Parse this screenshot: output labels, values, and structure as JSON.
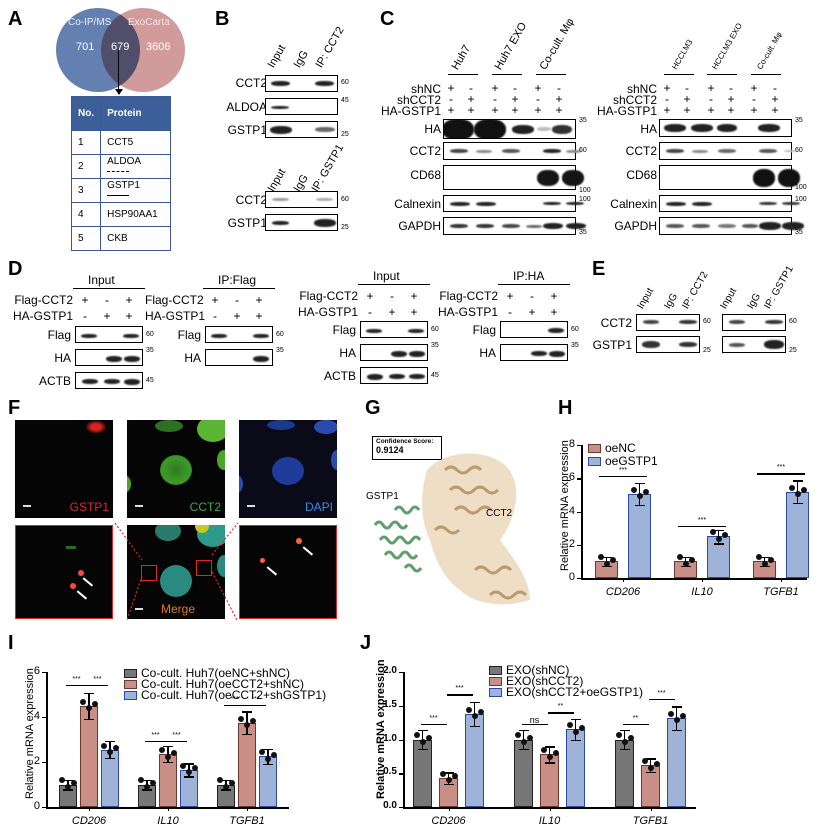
{
  "panels": {
    "A": {
      "label": "A",
      "venn": {
        "left_name": "Co-IP/MS",
        "right_name": "ExoCarta",
        "left_only": "701",
        "overlap": "679",
        "right_only": "3606",
        "left_color": "#5b79ad",
        "right_color": "#c98a8a"
      },
      "table": {
        "headers": [
          "No.",
          "Protein"
        ],
        "rows": [
          {
            "no": "1",
            "protein": "CCT5",
            "arrow": ""
          },
          {
            "no": "2",
            "protein": "ALDOA",
            "arrow": "dashed"
          },
          {
            "no": "3",
            "protein": "GSTP1",
            "arrow": "solid"
          },
          {
            "no": "4",
            "protein": "HSP90AA1",
            "arrow": ""
          },
          {
            "no": "5",
            "protein": "CKB",
            "arrow": ""
          }
        ]
      }
    },
    "B": {
      "label": "B",
      "top": {
        "lanes": [
          "Input",
          "IgG",
          "IP: CCT2"
        ],
        "rows": [
          {
            "name": "CCT2",
            "mw": "60"
          },
          {
            "name": "ALDOA",
            "mw": "45"
          },
          {
            "name": "GSTP1",
            "mw": "25"
          }
        ]
      },
      "bottom": {
        "lanes": [
          "Input",
          "IgG",
          "IP: GSTP1"
        ],
        "rows": [
          {
            "name": "CCT2",
            "mw": "60"
          },
          {
            "name": "GSTP1",
            "mw": "25"
          }
        ]
      }
    },
    "C": {
      "label": "C",
      "left": {
        "groups": [
          "Huh7",
          "Huh7 EXO",
          "Co-cult. Mφ"
        ]
      },
      "right": {
        "groups": [
          "HCCLM3",
          "HCCLM3 EXO",
          "Co-cult. Mφ"
        ]
      },
      "conditions": [
        {
          "name": "shNC",
          "values": [
            "+",
            "-",
            "+",
            "-",
            "+",
            "-"
          ]
        },
        {
          "name": "shCCT2",
          "values": [
            "-",
            "+",
            "-",
            "+",
            "-",
            "+"
          ]
        },
        {
          "name": "HA-GSTP1",
          "values": [
            "+",
            "+",
            "+",
            "+",
            "+",
            "+"
          ]
        }
      ],
      "rows": [
        {
          "name": "HA",
          "mw": "35"
        },
        {
          "name": "CCT2",
          "mw": "60"
        },
        {
          "name": "CD68",
          "mw": "100"
        },
        {
          "name": "Calnexin",
          "mw": "100"
        },
        {
          "name": "GAPDH",
          "mw": "35"
        }
      ]
    },
    "D": {
      "label": "D",
      "blocks": [
        {
          "title": "Input",
          "rows": [
            {
              "name": "Flag",
              "mw": "60"
            },
            {
              "name": "HA",
              "mw": "35"
            },
            {
              "name": "ACTB",
              "mw": "45"
            }
          ]
        },
        {
          "title": "IP:Flag",
          "rows": [
            {
              "name": "Flag",
              "mw": "60"
            },
            {
              "name": "HA",
              "mw": "35"
            }
          ]
        },
        {
          "title": "Input",
          "rows": [
            {
              "name": "Flag",
              "mw": "60"
            },
            {
              "name": "HA",
              "mw": "35"
            },
            {
              "name": "ACTB",
              "mw": "45"
            }
          ]
        },
        {
          "title": "IP:HA",
          "rows": [
            {
              "name": "Flag",
              "mw": "60"
            },
            {
              "name": "HA",
              "mw": "35"
            }
          ]
        }
      ],
      "conditions": [
        {
          "name": "Flag-CCT2",
          "values": [
            "+",
            "-",
            "+"
          ]
        },
        {
          "name": "HA-GSTP1",
          "values": [
            "-",
            "+",
            "+"
          ]
        }
      ]
    },
    "E": {
      "label": "E",
      "left_lanes": [
        "Input",
        "IgG",
        "IP: CCT2"
      ],
      "right_lanes": [
        "Input",
        "IgG",
        "IP: GSTP1"
      ],
      "rows": [
        {
          "name": "CCT2",
          "mw": "60"
        },
        {
          "name": "GSTP1",
          "mw": "25"
        }
      ]
    },
    "F": {
      "label": "F",
      "channels": [
        {
          "name": "GSTP1",
          "color": "#e0242a"
        },
        {
          "name": "CCT2",
          "color": "#3ea94b"
        },
        {
          "name": "DAPI",
          "color": "#2f8fe0"
        }
      ],
      "merge_label": "Merge",
      "merge_color": "#e07a20"
    },
    "G": {
      "label": "G",
      "score_title": "Confidence Score:",
      "score_value": "0.9124",
      "protein_a": "GSTP1",
      "protein_b": "CCT2"
    },
    "H": {
      "label": "H"
    },
    "I": {
      "label": "I"
    },
    "J": {
      "label": "J"
    }
  },
  "chart_data": [
    {
      "panel": "H",
      "type": "bar",
      "title": "",
      "xlabel": "",
      "ylabel": "Relative mRNA expression",
      "ylim": [
        0,
        8
      ],
      "yticks": [
        "0",
        "2",
        "4",
        "6",
        "8"
      ],
      "categories": [
        "CD206",
        "IL10",
        "TGFB1"
      ],
      "series": [
        {
          "name": "oeNC",
          "color": "#c98e86",
          "values": [
            1.0,
            1.0,
            1.0
          ]
        },
        {
          "name": "oeGSTP1",
          "color": "#9fb2d8",
          "values": [
            5.05,
            2.5,
            5.2
          ]
        }
      ],
      "significance": [
        "***",
        "***",
        "***"
      ],
      "legend_position": "top-left",
      "grid": false
    },
    {
      "panel": "I",
      "type": "bar",
      "title": "",
      "xlabel": "",
      "ylabel": "Relative mRNA expression",
      "ylim": [
        0,
        6
      ],
      "yticks": [
        "0",
        "2",
        "4",
        "6"
      ],
      "categories": [
        "CD206",
        "IL10",
        "TGFB1"
      ],
      "series": [
        {
          "name": "Co-cult. Huh7(oeNC+shNC)",
          "color": "#777777",
          "values": [
            1.0,
            1.0,
            1.0
          ]
        },
        {
          "name": "Co-cult. Huh7(oeCCT2+shNC)",
          "color": "#c98e86",
          "values": [
            4.5,
            2.35,
            3.75
          ]
        },
        {
          "name": "Co-cult. Huh7(oeCCT2+shGSTP1)",
          "color": "#9fb2d8",
          "values": [
            2.55,
            1.65,
            2.25
          ]
        }
      ],
      "significance": [
        [
          "***",
          "***"
        ],
        [
          "***",
          "***"
        ],
        [
          "***",
          "***"
        ]
      ],
      "legend_position": "top-right",
      "grid": false
    },
    {
      "panel": "J",
      "type": "bar",
      "title": "",
      "xlabel": "",
      "ylabel": "Relative mRNA expression",
      "ylim": [
        0,
        2.0
      ],
      "yticks": [
        "0.0",
        "0.5",
        "1.0",
        "1.5",
        "2.0"
      ],
      "categories": [
        "CD206",
        "IL10",
        "TGFB1"
      ],
      "series": [
        {
          "name": "EXO(shNC)",
          "color": "#777777",
          "values": [
            1.0,
            1.0,
            1.0
          ]
        },
        {
          "name": "EXO(shCCT2)",
          "color": "#c98e86",
          "values": [
            0.43,
            0.78,
            0.62
          ]
        },
        {
          "name": "EXO(shCCT2+oeGSTP1)",
          "color": "#9fb2d8",
          "values": [
            1.38,
            1.15,
            1.32
          ]
        }
      ],
      "significance": [
        [
          "***",
          "***"
        ],
        [
          "ns",
          "**"
        ],
        [
          "**",
          "***"
        ]
      ],
      "legend_position": "top",
      "grid": false
    }
  ]
}
